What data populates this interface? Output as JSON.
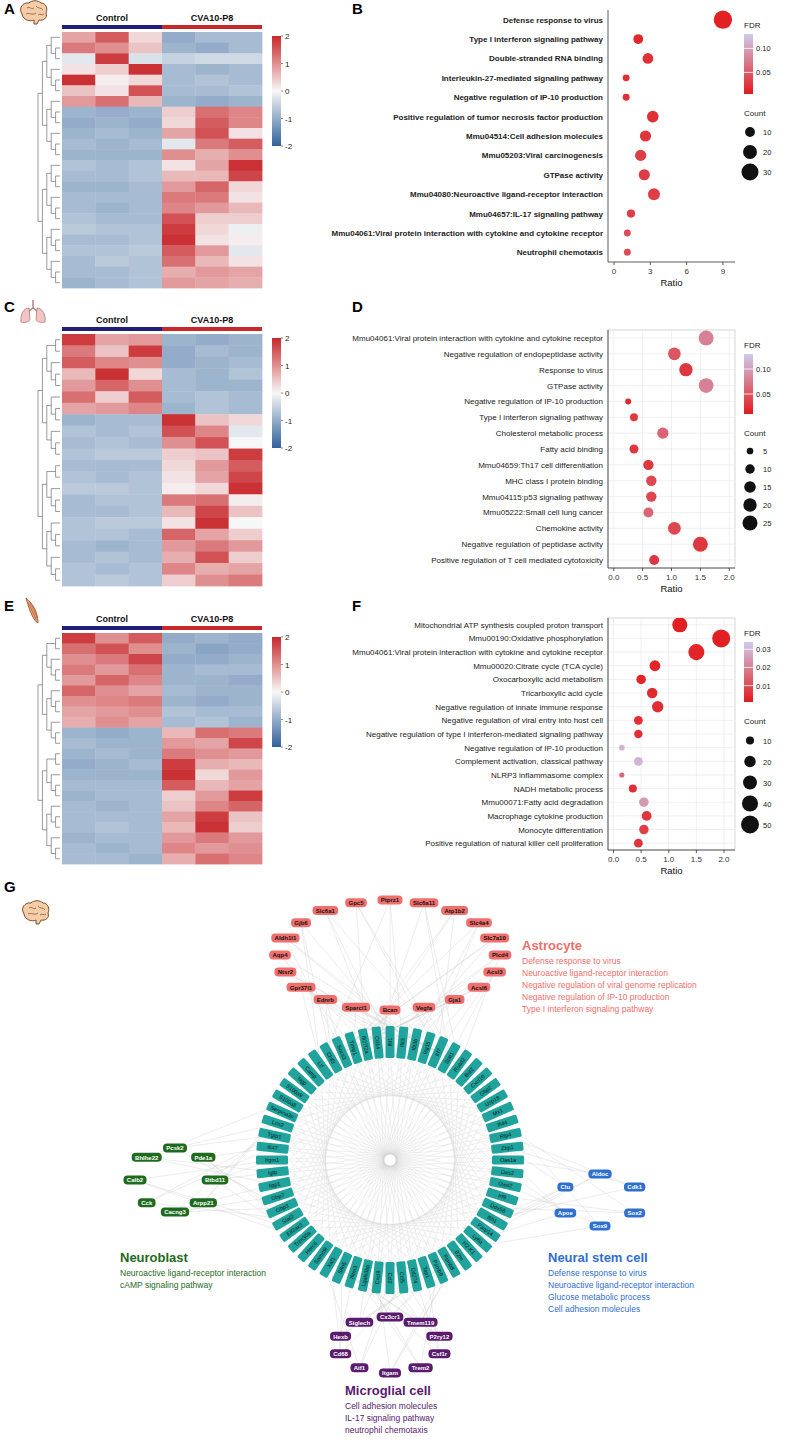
{
  "chart_data": [
    {
      "panel": "A",
      "type": "heatmap",
      "groups": [
        "Control",
        "CVA10-P8"
      ],
      "colors": [
        "#1f1f7a",
        "#c8272b"
      ],
      "cells": [
        [
          0.8,
          1.5,
          0.3,
          -1,
          -0.8,
          -0.8
        ],
        [
          1.2,
          1.0,
          0.5,
          -0.9,
          -1.0,
          -0.8
        ],
        [
          -0.2,
          1.8,
          -0.3,
          -0.5,
          -0.4,
          -0.4
        ],
        [
          0.2,
          0.4,
          1.9,
          -0.8,
          -0.9,
          -0.8
        ],
        [
          1.9,
          0.1,
          0.3,
          -0.8,
          -0.7,
          -0.8
        ],
        [
          0.5,
          0.2,
          1.6,
          -0.8,
          -0.8,
          -0.7
        ],
        [
          0.9,
          1.3,
          0.6,
          -0.9,
          -1.0,
          -0.9
        ],
        [
          -0.9,
          -1.0,
          -0.9,
          0.4,
          1.3,
          1.1
        ],
        [
          -1.0,
          -0.9,
          -1.0,
          0.3,
          1.5,
          1.1
        ],
        [
          -0.9,
          -0.8,
          -0.9,
          0.8,
          1.6,
          0.2
        ],
        [
          -0.8,
          -0.9,
          -0.8,
          -0.2,
          1.2,
          1.5
        ],
        [
          -0.9,
          -0.9,
          -0.9,
          1.0,
          0.7,
          1.0
        ],
        [
          -0.7,
          -0.8,
          -0.7,
          0.2,
          0.8,
          1.9
        ],
        [
          -0.8,
          -0.8,
          -0.7,
          0.6,
          0.6,
          1.7
        ],
        [
          -0.9,
          -0.9,
          -0.8,
          0.9,
          1.4,
          0.3
        ],
        [
          -0.8,
          -0.8,
          -0.8,
          1.2,
          1.2,
          0.2
        ],
        [
          -0.8,
          -0.9,
          -0.8,
          1.1,
          0.9,
          0.6
        ],
        [
          -0.7,
          -0.8,
          -0.8,
          1.6,
          0.4,
          0.4
        ],
        [
          -0.6,
          -0.7,
          -0.7,
          1.8,
          0.3,
          -0.1
        ],
        [
          -0.8,
          -0.8,
          -0.7,
          1.9,
          0.2,
          0.1
        ],
        [
          -0.7,
          -0.7,
          -0.6,
          1.5,
          0.9,
          -0.2
        ],
        [
          -0.8,
          -0.6,
          -0.7,
          1.3,
          0.6,
          0.2
        ],
        [
          -0.8,
          -0.8,
          -0.7,
          0.7,
          0.9,
          0.8
        ],
        [
          -0.9,
          -0.8,
          -0.7,
          0.9,
          0.8,
          0.7
        ]
      ],
      "colorbar_range": [
        -2,
        2
      ],
      "colorbar_ticks": [
        2,
        1,
        0,
        -1,
        -2
      ]
    },
    {
      "panel": "B",
      "type": "bubble",
      "terms": [
        "Defense response to virus",
        "Type I interferon signaling pathway",
        "Double-stranded RNA binding",
        "Interleukin-27-mediated signaling pathway",
        "Negative regulation of IP-10 production",
        "Positive regulation of tumor necrosis factor production",
        "Mmu04514:Cell adhesion molecules",
        "Mmu05203:Viral carcinogenesis",
        "GTPase activity",
        "Mmu04080:Neuroactive ligand-receptor interaction",
        "Mmu04657:IL-17 signaling pathway",
        "Mmu04061:Viral protein interaction with cytokine and cytokine receptor",
        "Neutrophil chemotaxis"
      ],
      "ratio": [
        9,
        2,
        2.8,
        1,
        1,
        3.2,
        2.6,
        2.2,
        2.5,
        3.3,
        1.4,
        1.1,
        1.1
      ],
      "count": [
        35,
        10,
        12,
        5,
        5,
        14,
        13,
        13,
        13,
        15,
        7,
        5,
        5
      ],
      "fdr": [
        0.01,
        0.015,
        0.02,
        0.02,
        0.02,
        0.02,
        0.025,
        0.03,
        0.03,
        0.03,
        0.03,
        0.04,
        0.04
      ],
      "x_label": "Ratio",
      "xlim": [
        -0.5,
        10
      ],
      "xticks": [
        0,
        3,
        6,
        9
      ],
      "grid": false,
      "color_title": "FDR",
      "fdr_range": [
        0.005,
        0.13
      ],
      "fdr_ticks": [
        0.05,
        {
          "value": 0.1,
          "label": "0.10"
        }
      ],
      "size_title": "Count",
      "size_legend": [
        10,
        20,
        30
      ]
    },
    {
      "panel": "C",
      "type": "heatmap",
      "groups": [
        "Control",
        "CVA10-P8"
      ],
      "colors": [
        "#1f1f7a",
        "#c8272b"
      ],
      "cells": [
        [
          1.8,
          0.8,
          0.9,
          -0.9,
          -1.0,
          -0.9
        ],
        [
          1.2,
          0.5,
          1.8,
          -1.0,
          -0.8,
          -0.9
        ],
        [
          1.5,
          1.1,
          1.0,
          -1.0,
          -0.9,
          -0.8
        ],
        [
          0.6,
          1.9,
          0.3,
          -0.8,
          -0.9,
          -0.7
        ],
        [
          0.9,
          1.4,
          1.0,
          -0.8,
          -0.9,
          -0.9
        ],
        [
          1.3,
          0.4,
          1.5,
          -0.8,
          -0.7,
          -0.8
        ],
        [
          0.8,
          0.9,
          1.1,
          -0.9,
          -0.7,
          -0.8
        ],
        [
          -0.9,
          -0.8,
          -0.8,
          1.9,
          0.5,
          0.3
        ],
        [
          -0.7,
          -0.8,
          -0.7,
          1.6,
          1.1,
          -0.2
        ],
        [
          -0.8,
          -0.7,
          -0.8,
          1.0,
          1.6,
          0.0
        ],
        [
          -0.7,
          -0.6,
          -0.6,
          0.4,
          0.5,
          1.8
        ],
        [
          -0.8,
          -0.8,
          -0.8,
          0.3,
          0.9,
          1.5
        ],
        [
          -0.7,
          -0.8,
          -0.7,
          0.2,
          0.8,
          1.7
        ],
        [
          -0.6,
          -0.6,
          -0.7,
          0.1,
          0.3,
          1.9
        ],
        [
          -0.8,
          -0.7,
          -0.7,
          1.2,
          1.3,
          0.1
        ],
        [
          -0.8,
          -0.8,
          -0.7,
          0.6,
          1.7,
          0.5
        ],
        [
          -0.7,
          -0.6,
          -0.6,
          0.2,
          1.9,
          0.0
        ],
        [
          -0.7,
          -0.7,
          -0.8,
          1.4,
          0.8,
          0.4
        ],
        [
          -0.8,
          -0.9,
          -0.8,
          0.9,
          1.2,
          0.9
        ],
        [
          -0.8,
          -0.7,
          -0.8,
          0.7,
          1.6,
          0.4
        ],
        [
          -0.7,
          -0.8,
          -0.7,
          1.1,
          0.7,
          0.8
        ],
        [
          -0.7,
          -0.6,
          -0.7,
          0.4,
          1.0,
          1.2
        ]
      ],
      "colorbar_range": [
        -2,
        2
      ],
      "colorbar_ticks": [
        2,
        1,
        0,
        -1,
        -2
      ]
    },
    {
      "panel": "D",
      "type": "bubble",
      "terms": [
        "Mmu04061:Viral protein interaction with cytokine and cytokine receptor",
        "Negative regulation of endopeptidase activity",
        "Response to virus",
        "GTPase activity",
        "Negative regulation of IP-10 production",
        "Type I interferon signaling pathway",
        "Cholesterol metabolic process",
        "Fatty acid binding",
        "Mmu04659:Th17 cell differentiation",
        "MHC class I protein binding",
        "Mmu04115:p53 signaling pathway",
        "Mmu05222:Small cell lung cancer",
        "Chemokine activity",
        "Negative regulation of peptidase activity",
        "Positive regulation of T cell mediated cytotoxicity"
      ],
      "ratio": [
        1.6,
        1.05,
        1.25,
        1.6,
        0.25,
        0.35,
        0.85,
        0.35,
        0.6,
        0.65,
        0.65,
        0.6,
        1.05,
        1.5,
        0.7
      ],
      "count": [
        25,
        18,
        20,
        24,
        4,
        7,
        14,
        9,
        12,
        12,
        12,
        11,
        18,
        25,
        11
      ],
      "fdr": [
        0.08,
        0.05,
        0.03,
        0.08,
        0.02,
        0.03,
        0.06,
        0.03,
        0.03,
        0.04,
        0.04,
        0.06,
        0.04,
        0.03,
        0.03
      ],
      "x_label": "Ratio",
      "xlim": [
        -0.1,
        2.1
      ],
      "xticks": [
        {
          "value": 0,
          "label": "0.0"
        },
        {
          "value": 0.5,
          "label": "0.5"
        },
        {
          "value": 1,
          "label": "1.0"
        },
        {
          "value": 1.5,
          "label": "1.5"
        },
        {
          "value": 2,
          "label": "2.0"
        }
      ],
      "grid": true,
      "color_title": "FDR",
      "fdr_range": [
        0.01,
        0.13
      ],
      "fdr_ticks": [
        0.05,
        {
          "value": 0.1,
          "label": "0.10"
        }
      ],
      "size_title": "Count",
      "size_legend": [
        5,
        10,
        15,
        20,
        25
      ]
    },
    {
      "panel": "E",
      "type": "heatmap",
      "groups": [
        "Control",
        "CVA10-P8"
      ],
      "colors": [
        "#1f1f7a",
        "#c8272b"
      ],
      "cells": [
        [
          1.8,
          1.0,
          1.5,
          -1.0,
          -0.9,
          -1.0
        ],
        [
          1.3,
          1.6,
          1.0,
          -0.9,
          -1.1,
          -1.0
        ],
        [
          1.0,
          1.2,
          1.7,
          -1.0,
          -1.0,
          -0.9
        ],
        [
          1.2,
          0.9,
          1.3,
          -0.9,
          -0.8,
          -0.8
        ],
        [
          0.9,
          1.4,
          1.1,
          -0.9,
          -0.9,
          -1.0
        ],
        [
          1.4,
          1.0,
          0.8,
          -0.8,
          -0.9,
          -0.9
        ],
        [
          1.0,
          1.1,
          1.2,
          -0.9,
          -1.0,
          -0.9
        ],
        [
          0.8,
          0.9,
          1.0,
          -0.7,
          -0.8,
          -0.8
        ],
        [
          0.7,
          1.0,
          0.8,
          -0.8,
          -0.7,
          -0.9
        ],
        [
          -0.9,
          -1.0,
          -0.9,
          0.6,
          1.3,
          1.2
        ],
        [
          -0.8,
          -0.9,
          -0.9,
          0.9,
          0.8,
          1.7
        ],
        [
          -0.9,
          -0.8,
          -0.9,
          1.2,
          1.0,
          0.9
        ],
        [
          -1.0,
          -0.9,
          -0.8,
          1.8,
          0.7,
          0.6
        ],
        [
          -0.9,
          -0.9,
          -0.9,
          1.9,
          0.3,
          0.9
        ],
        [
          -0.8,
          -0.8,
          -0.8,
          1.5,
          0.6,
          0.8
        ],
        [
          -0.9,
          -0.8,
          -0.8,
          0.4,
          0.9,
          1.8
        ],
        [
          -0.8,
          -0.9,
          -0.8,
          0.5,
          1.1,
          1.4
        ],
        [
          -0.8,
          -0.8,
          -0.8,
          0.8,
          1.8,
          0.5
        ],
        [
          -0.8,
          -0.7,
          -0.8,
          0.6,
          1.9,
          0.4
        ],
        [
          -0.9,
          -0.8,
          -0.8,
          0.9,
          1.2,
          0.9
        ],
        [
          -0.8,
          -0.9,
          -0.8,
          1.1,
          0.9,
          1.0
        ],
        [
          -0.8,
          -0.8,
          -0.9,
          0.7,
          1.3,
          1.1
        ]
      ],
      "colorbar_range": [
        -2,
        2
      ],
      "colorbar_ticks": [
        2,
        1,
        0,
        -1,
        -2
      ]
    },
    {
      "panel": "F",
      "type": "bubble",
      "terms": [
        "Mitochondrial ATP synthesis coupled proton transport",
        "Mmu00190:Oxidative phosphorylation",
        "Mmu04061:Viral protein interaction with cytokine and cytokine receptor",
        "Mmu00020:Citrate cycle (TCA cycle)",
        "Oxocarboxylic acid metabolism",
        "Tricarboxylic acid cycle",
        "Negative regulation of innate immune response",
        "Negative regulation of viral entry into host cell",
        "Negative regulation of type I interferon-mediated signaling pathway",
        "Negative regulation of IP-10 production",
        "Complement activation, classical pathway",
        "NLRP3 inflammasome complex",
        "NADH metabolic process",
        "Mmu00071:Fatty acid degradation",
        "Macrophage cytokine production",
        "Monocyte differentiation",
        "Positive regulation of natural killer cell proliferation"
      ],
      "ratio": [
        1.2,
        1.95,
        1.5,
        0.75,
        0.5,
        0.7,
        0.8,
        0.45,
        0.45,
        0.15,
        0.45,
        0.15,
        0.35,
        0.55,
        0.6,
        0.55,
        0.45
      ],
      "count": [
        35,
        50,
        40,
        18,
        14,
        17,
        20,
        12,
        11,
        5,
        12,
        4,
        10,
        14,
        15,
        14,
        12
      ],
      "fdr": [
        0.002,
        0.002,
        0.003,
        0.003,
        0.003,
        0.004,
        0.005,
        0.005,
        0.005,
        0.03,
        0.03,
        0.015,
        0.005,
        0.025,
        0.006,
        0.008,
        0.006
      ],
      "x_label": "Ratio",
      "xlim": [
        -0.1,
        2.2
      ],
      "xticks": [
        {
          "value": 0,
          "label": "0.0"
        },
        {
          "value": 0.5,
          "label": "0.5"
        },
        {
          "value": 1,
          "label": "1.0"
        },
        {
          "value": 1.5,
          "label": "1.5"
        },
        {
          "value": 2,
          "label": "2.0"
        }
      ],
      "grid": true,
      "color_title": "FDR",
      "fdr_range": [
        0.001,
        0.034
      ],
      "fdr_ticks": [
        0.01,
        0.02,
        0.03
      ],
      "size_title": "Count",
      "size_legend": [
        10,
        20,
        30,
        40,
        50
      ]
    }
  ],
  "network": {
    "panel": "G",
    "hub_color": "#1fa39c",
    "hub_genes": [
      "Ifit1",
      "Ifit3",
      "Ifit3b",
      "Isg15",
      "Irf7",
      "Stat1",
      "Rsad2",
      "Bst2",
      "Cxcl10",
      "Gbp2",
      "Usp18",
      "Mx1",
      "Ifi44",
      "Rtp4",
      "Zbp1",
      "Oas1a",
      "Oas2",
      "Oasl2",
      "Irf9",
      "Ddx58",
      "Ifih1",
      "Parp14",
      "Ly6a",
      "H2-K1",
      "B2m",
      "Psmb8",
      "Psmb9",
      "Tap1",
      "Cd274",
      "Ccl5",
      "Ccl2",
      "Cxcl9",
      "Lgals3bp",
      "Ifitm3",
      "Slfn5",
      "Xaf1",
      "Samd9l",
      "Herc6",
      "Trim30a",
      "Eif2ak2",
      "Stat2",
      "Gbp3",
      "Gbp7",
      "Iigp1",
      "Igtp",
      "Irgm1",
      "Ifi47",
      "Tgtp1",
      "Lcn2",
      "Serpina3n",
      "S100a8",
      "S100a9",
      "Ngp",
      "Camp",
      "Ltf",
      "Chil3",
      "Socs3",
      "Timp1",
      "Ifi27l2a",
      "Cd14"
    ],
    "clusters": [
      {
        "name": "Astrocyte",
        "color": "#ef6f6c",
        "genes": [
          "Ptprz1",
          "Slc6a11",
          "Atp1b2",
          "Slc4a4",
          "Slc7a10",
          "Plcd4",
          "Acsl3",
          "Acsl6",
          "Gja1",
          "Vegfa",
          "Bcan",
          "Sparcl1",
          "Ednrb",
          "Gpr37l1",
          "Ntsr2",
          "Aqp4",
          "Aldh1l1",
          "Gjb6",
          "Slc6a1",
          "Gpc5"
        ],
        "terms": [
          "Defense response to virus",
          "Neuroactive ligand-receptor interaction",
          "Negative regulation of viral genome replication",
          "Negative regulation of IP-10 production",
          "Type I interferon signaling pathway"
        ]
      },
      {
        "name": "Neuroblast",
        "color": "#1e6b1e",
        "genes": [
          "Pcsk2",
          "Pde1a",
          "Btbd11",
          "Arpp21",
          "Cacng3",
          "Cck",
          "Calb2",
          "Bhlhe22"
        ],
        "terms": [
          "Neuroactive ligand-receptor interaction",
          "cAMP signaling pathway"
        ]
      },
      {
        "name": "Neural stem cell",
        "color": "#2f6fd0",
        "genes": [
          "Aldoc",
          "Cdk1",
          "Sox2",
          "Sox9",
          "Apoe",
          "Clu"
        ],
        "terms": [
          "Defense response to virus",
          "Neuroactive ligand-receptor interaction",
          "Glucose metabolic process",
          "Cell adhesion molecules"
        ]
      },
      {
        "name": "Microglial cell",
        "color": "#5a1a6e",
        "genes": [
          "Cx3cr1",
          "Tmem119",
          "P2ry12",
          "Csf1r",
          "Trem2",
          "Itgam",
          "Aif1",
          "Cd68",
          "Hexb",
          "Siglech"
        ],
        "terms": [
          "Cell adhesion molecules",
          "IL-17 signaling pathway",
          "neutrophil chemotaxis"
        ]
      }
    ]
  }
}
